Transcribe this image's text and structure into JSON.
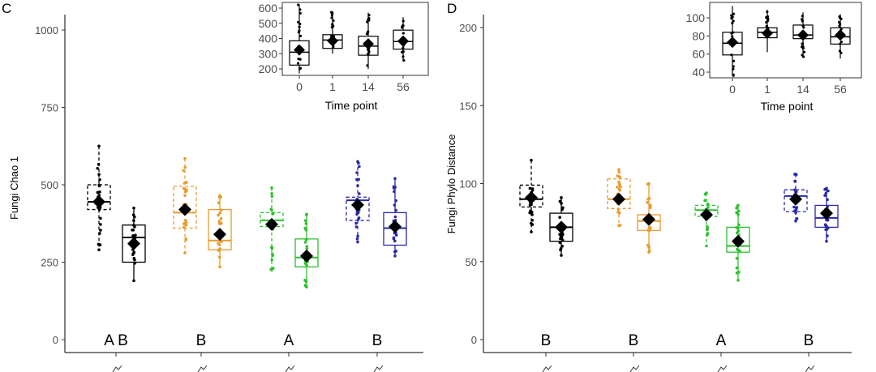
{
  "panels": [
    {
      "letter": "C",
      "chart_data": {
        "type": "box",
        "ylabel": "Fungi Chao 1",
        "ylim": [
          0,
          1050
        ],
        "yticks": [
          0,
          250,
          500,
          750,
          1000
        ],
        "categories": [
          "",
          "",
          "",
          ""
        ],
        "series": [
          {
            "color": "#000000",
            "style": "dashed",
            "median": [
              445
            ],
            "q1": [
              420
            ],
            "q3": [
              500
            ],
            "whisker_low": [
              290
            ],
            "whisker_high": [
              625
            ],
            "mean": [
              445
            ]
          },
          {
            "color": "#000000",
            "style": "solid",
            "median": [
              330
            ],
            "q1": [
              250
            ],
            "q3": [
              370
            ],
            "whisker_low": [
              190
            ],
            "whisker_high": [
              425
            ],
            "mean": [
              310
            ]
          },
          {
            "color": "#E89B2C",
            "style": "dashed",
            "median": [
              410
            ],
            "q1": [
              360
            ],
            "q3": [
              495
            ],
            "whisker_low": [
              280
            ],
            "whisker_high": [
              585
            ],
            "mean": [
              420
            ]
          },
          {
            "color": "#E89B2C",
            "style": "solid",
            "median": [
              320
            ],
            "q1": [
              290
            ],
            "q3": [
              420
            ],
            "whisker_low": [
              235
            ],
            "whisker_high": [
              465
            ],
            "mean": [
              340
            ]
          },
          {
            "color": "#2EC12E",
            "style": "dashed",
            "median": [
              385
            ],
            "q1": [
              365
            ],
            "q3": [
              410
            ],
            "whisker_low": [
              225
            ],
            "whisker_high": [
              490
            ],
            "mean": [
              372
            ]
          },
          {
            "color": "#2EC12E",
            "style": "solid",
            "median": [
              265
            ],
            "q1": [
              235
            ],
            "q3": [
              325
            ],
            "whisker_low": [
              170
            ],
            "whisker_high": [
              405
            ],
            "mean": [
              270
            ]
          },
          {
            "color": "#2A2AA8",
            "style": "dashed",
            "median": [
              450
            ],
            "q1": [
              385
            ],
            "q3": [
              460
            ],
            "whisker_low": [
              315
            ],
            "whisker_high": [
              575
            ],
            "mean": [
              435
            ]
          },
          {
            "color": "#2A2AA8",
            "style": "solid",
            "median": [
              360
            ],
            "q1": [
              305
            ],
            "q3": [
              410
            ],
            "whisker_low": [
              270
            ],
            "whisker_high": [
              520
            ],
            "mean": [
              365
            ]
          }
        ],
        "group_letters": [
          "A B",
          "B",
          "A",
          "B"
        ]
      },
      "inset": {
        "xlabel": "Time point",
        "categories": [
          "0",
          "1",
          "14",
          "56"
        ],
        "yticks": [
          200,
          300,
          400,
          500,
          600
        ],
        "ylim": [
          150,
          640
        ],
        "median": [
          310,
          390,
          350,
          380
        ],
        "q1": [
          225,
          335,
          290,
          330
        ],
        "q3": [
          385,
          425,
          415,
          455
        ],
        "whisker_low": [
          170,
          300,
          200,
          250
        ],
        "whisker_high": [
          625,
          580,
          570,
          540
        ],
        "mean": [
          325,
          385,
          365,
          383
        ]
      }
    },
    {
      "letter": "D",
      "chart_data": {
        "type": "box",
        "ylabel": "Fungi Phylo Distance",
        "ylim": [
          0,
          210
        ],
        "yticks": [
          0,
          50,
          100,
          150,
          200
        ],
        "categories": [
          "",
          "",
          "",
          ""
        ],
        "series": [
          {
            "color": "#000000",
            "style": "dashed",
            "median": [
              90
            ],
            "q1": [
              85
            ],
            "q3": [
              99
            ],
            "whisker_low": [
              69
            ],
            "whisker_high": [
              115
            ],
            "mean": [
              91
            ]
          },
          {
            "color": "#000000",
            "style": "solid",
            "median": [
              72
            ],
            "q1": [
              63
            ],
            "q3": [
              81
            ],
            "whisker_low": [
              54
            ],
            "whisker_high": [
              91
            ],
            "mean": [
              72
            ]
          },
          {
            "color": "#E89B2C",
            "style": "dashed",
            "median": [
              90
            ],
            "q1": [
              84
            ],
            "q3": [
              103
            ],
            "whisker_low": [
              73
            ],
            "whisker_high": [
              109
            ],
            "mean": [
              90
            ]
          },
          {
            "color": "#E89B2C",
            "style": "solid",
            "median": [
              76
            ],
            "q1": [
              70
            ],
            "q3": [
              80
            ],
            "whisker_low": [
              56
            ],
            "whisker_high": [
              100
            ],
            "mean": [
              77
            ]
          },
          {
            "color": "#2EC12E",
            "style": "dashed",
            "median": [
              83
            ],
            "q1": [
              79
            ],
            "q3": [
              86
            ],
            "whisker_low": [
              60
            ],
            "whisker_high": [
              94
            ],
            "mean": [
              80
            ]
          },
          {
            "color": "#2EC12E",
            "style": "solid",
            "median": [
              60
            ],
            "q1": [
              56
            ],
            "q3": [
              72
            ],
            "whisker_low": [
              38
            ],
            "whisker_high": [
              86
            ],
            "mean": [
              63
            ]
          },
          {
            "color": "#2A2AA8",
            "style": "dashed",
            "median": [
              92
            ],
            "q1": [
              82
            ],
            "q3": [
              96
            ],
            "whisker_low": [
              76
            ],
            "whisker_high": [
              106
            ],
            "mean": [
              90
            ]
          },
          {
            "color": "#2A2AA8",
            "style": "solid",
            "median": [
              78
            ],
            "q1": [
              72
            ],
            "q3": [
              86
            ],
            "whisker_low": [
              63
            ],
            "whisker_high": [
              97
            ],
            "mean": [
              81
            ]
          }
        ],
        "group_letters": [
          "B",
          "B",
          "A",
          "B"
        ]
      },
      "inset": {
        "xlabel": "Time point",
        "categories": [
          "0",
          "1",
          "14",
          "56"
        ],
        "yticks": [
          40,
          60,
          80,
          100
        ],
        "ylim": [
          35,
          118
        ],
        "median": [
          72,
          84,
          81,
          79
        ],
        "q1": [
          59,
          78,
          77,
          71
        ],
        "q3": [
          84,
          89,
          92,
          89
        ],
        "whisker_low": [
          36,
          62,
          56,
          55
        ],
        "whisker_high": [
          113,
          109,
          106,
          104
        ],
        "mean": [
          73,
          83,
          81,
          81
        ]
      }
    }
  ]
}
